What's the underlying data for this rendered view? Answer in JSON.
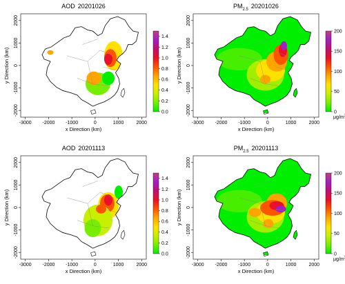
{
  "panels": [
    {
      "id": "aod1",
      "kind": "aod",
      "title_main": "AOD",
      "title_date": "20201026"
    },
    {
      "id": "pm1",
      "kind": "pm",
      "title_main": "PM",
      "title_sub": "2.5",
      "title_date": "20201026"
    },
    {
      "id": "aod2",
      "kind": "aod",
      "title_main": "AOD",
      "title_date": "20201113"
    },
    {
      "id": "pm2",
      "kind": "pm",
      "title_main": "PM",
      "title_sub": "2.5",
      "title_date": "20201113"
    }
  ],
  "axes": {
    "xlabel": "x Direction (km)",
    "ylabel": "y Direction (km)",
    "xticks": [
      "-3000",
      "-2000",
      "-1000",
      "0",
      "1000",
      "2000"
    ],
    "yticks": [
      "-2000",
      "-1000",
      "0",
      "1000",
      "2000"
    ]
  },
  "colorbars": {
    "aod": {
      "ticks": [
        "0.0",
        "0.2",
        "0.4",
        "0.6",
        "0.8",
        "1.0",
        "1.2",
        "1.4"
      ],
      "max": 1.5,
      "unit": ""
    },
    "pm": {
      "ticks": [
        "0",
        "50",
        "100",
        "150",
        "200"
      ],
      "max": 200,
      "unit_main": "μg/m",
      "unit_sup": "3"
    }
  },
  "colors": {
    "scale": [
      "#00ee00",
      "#77ee00",
      "#c8ee00",
      "#ffe100",
      "#ffa500",
      "#ff5500",
      "#e8102a",
      "#c01070",
      "#a020c0",
      "#c04080"
    ],
    "outline": "#000000",
    "province": "#888888"
  }
}
